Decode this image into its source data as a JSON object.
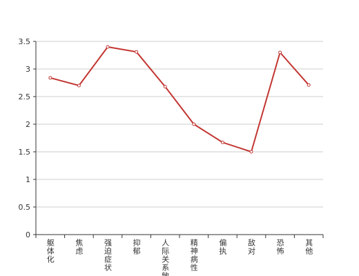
{
  "chart_data": {
    "type": "line",
    "categories": [
      "躯体化",
      "焦虑",
      "强迫症状",
      "抑郁",
      "人际关系敏感",
      "精神病性",
      "偏执",
      "敌对",
      "恐怖",
      "其他"
    ],
    "series": [
      {
        "color": "#c23531",
        "values": [
          2.84,
          2.7,
          3.4,
          3.31,
          2.68,
          2.0,
          1.67,
          1.5,
          3.3,
          2.71
        ]
      }
    ],
    "ylim": [
      0,
      3.5
    ],
    "yticks": [
      0,
      0.5,
      1,
      1.5,
      2,
      2.5,
      3,
      3.5
    ],
    "grid": true
  }
}
